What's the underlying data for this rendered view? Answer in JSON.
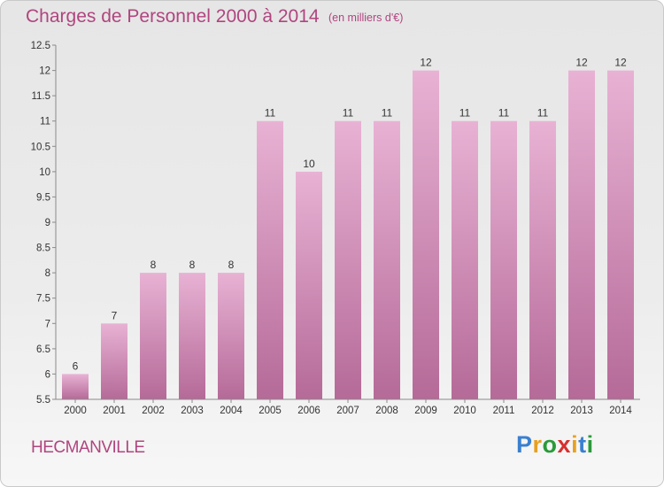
{
  "header": {
    "title": "Charges de Personnel 2000 à 2014",
    "subtitle": "(en milliers d'€)"
  },
  "footer": {
    "town": "HECMANVILLE",
    "brand_letters": [
      "P",
      "r",
      "o",
      "x",
      "i",
      "t",
      "i"
    ],
    "brand_colors": [
      "#3a7fd0",
      "#e8a020",
      "#2a9a3a",
      "#d83030",
      "#e8a020",
      "#3a7fd0",
      "#2a9a3a"
    ]
  },
  "colors": {
    "accent": "#b0457f",
    "bar_top": "#e8b2d4",
    "bar_bottom": "#b56a98",
    "axis": "#8a8a8a",
    "tick_label": "#333333",
    "data_label": "#333333"
  },
  "chart_data": {
    "type": "bar",
    "categories": [
      "2000",
      "2001",
      "2002",
      "2003",
      "2004",
      "2005",
      "2006",
      "2007",
      "2008",
      "2009",
      "2010",
      "2011",
      "2012",
      "2013",
      "2014"
    ],
    "values": [
      6,
      7,
      8,
      8,
      8,
      11,
      10,
      11,
      11,
      12,
      11,
      11,
      11,
      12,
      12
    ],
    "data_labels": [
      "6",
      "7",
      "8",
      "8",
      "8",
      "11",
      "10",
      "11",
      "11",
      "12",
      "11",
      "11",
      "11",
      "12",
      "12"
    ],
    "title": "Charges de Personnel 2000 à 2014",
    "xlabel": "",
    "ylabel": "",
    "ylim": [
      5.5,
      12.5
    ],
    "yticks": [
      5.5,
      6,
      6.5,
      7,
      7.5,
      8,
      8.5,
      9,
      9.5,
      10,
      10.5,
      11,
      11.5,
      12,
      12.5
    ],
    "ytick_labels": [
      "5.5",
      "6",
      "6.5",
      "7",
      "7.5",
      "8",
      "8.5",
      "9",
      "9.5",
      "10",
      "10.5",
      "11",
      "11.5",
      "12",
      "12.5"
    ],
    "grid": false,
    "legend": "none"
  }
}
